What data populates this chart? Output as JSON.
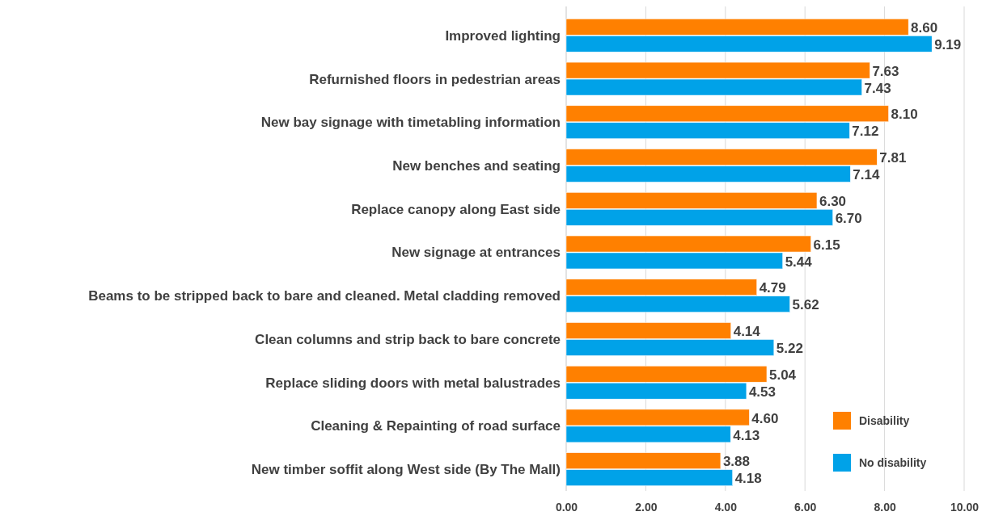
{
  "chart_data": {
    "type": "bar",
    "orientation": "horizontal",
    "categories": [
      "Improved lighting",
      "Refurnished floors in pedestrian areas",
      "New bay signage with timetabling information",
      "New benches and seating",
      "Replace canopy along East side",
      "New signage at entrances",
      "Beams to be stripped back to bare and cleaned. Metal cladding removed",
      "Clean columns and strip back to bare concrete",
      "Replace sliding doors with metal balustrades",
      "Cleaning & Repainting of road surface",
      "New timber soffit along West side (By The Mall)"
    ],
    "series": [
      {
        "name": "Disability",
        "color": "#ff8000",
        "values": [
          8.6,
          7.63,
          8.1,
          7.81,
          6.3,
          6.15,
          4.79,
          4.14,
          5.04,
          4.6,
          3.88
        ],
        "value_labels": [
          "8.60",
          "7.63",
          "8.10",
          "7.81",
          "6.30",
          "6.15",
          "4.79",
          "4.14",
          "5.04",
          "4.60",
          "3.88"
        ]
      },
      {
        "name": "No disability",
        "color": "#00a2e8",
        "values": [
          9.19,
          7.43,
          7.12,
          7.14,
          6.7,
          5.44,
          5.62,
          5.22,
          4.53,
          4.13,
          4.18
        ],
        "value_labels": [
          "9.19",
          "7.43",
          "7.12",
          "7.14",
          "6.70",
          "5.44",
          "5.62",
          "5.22",
          "4.53",
          "4.13",
          "4.18"
        ]
      }
    ],
    "xlim": [
      0,
      10
    ],
    "xticks": [
      {
        "value": 0,
        "label": "0.00"
      },
      {
        "value": 2,
        "label": "2.00"
      },
      {
        "value": 4,
        "label": "4.00"
      },
      {
        "value": 6,
        "label": "6.00"
      },
      {
        "value": 8,
        "label": "8.00"
      },
      {
        "value": 10,
        "label": "10.00"
      }
    ],
    "grid": "x",
    "legend": "bottom right"
  }
}
